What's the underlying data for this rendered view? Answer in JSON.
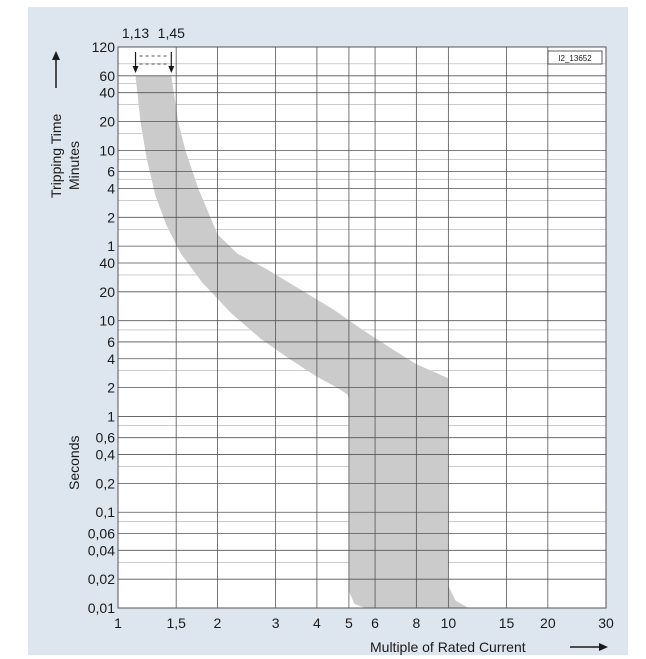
{
  "chart_data": {
    "type": "area",
    "title": "",
    "image_id": "I2_13652",
    "xlabel": "Multiple of Rated Current",
    "ylabel_top": "Tripping Time",
    "ylabel_minutes": "Minutes",
    "ylabel_seconds": "Seconds",
    "xscale": "log",
    "yscale": "log",
    "x_ticks": [
      {
        "value": 1,
        "label": "1"
      },
      {
        "value": 1.5,
        "label": "1,5"
      },
      {
        "value": 2,
        "label": "2"
      },
      {
        "value": 3,
        "label": "3"
      },
      {
        "value": 4,
        "label": "4"
      },
      {
        "value": 5,
        "label": "5"
      },
      {
        "value": 6,
        "label": "6"
      },
      {
        "value": 8,
        "label": "8"
      },
      {
        "value": 10,
        "label": "10"
      },
      {
        "value": 15,
        "label": "15"
      },
      {
        "value": 20,
        "label": "20"
      },
      {
        "value": 30,
        "label": "30"
      }
    ],
    "y_ticks": [
      {
        "seconds": 7200,
        "label": "120"
      },
      {
        "seconds": 3600,
        "label": "60"
      },
      {
        "seconds": 2400,
        "label": "40"
      },
      {
        "seconds": 1200,
        "label": "20"
      },
      {
        "seconds": 600,
        "label": "10"
      },
      {
        "seconds": 360,
        "label": "6"
      },
      {
        "seconds": 240,
        "label": "4"
      },
      {
        "seconds": 120,
        "label": "2"
      },
      {
        "seconds": 60,
        "label": "1"
      },
      {
        "seconds": 40,
        "label": "40"
      },
      {
        "seconds": 20,
        "label": "20"
      },
      {
        "seconds": 10,
        "label": "10"
      },
      {
        "seconds": 6,
        "label": "6"
      },
      {
        "seconds": 4,
        "label": "4"
      },
      {
        "seconds": 2,
        "label": "2"
      },
      {
        "seconds": 1,
        "label": "1"
      },
      {
        "seconds": 0.6,
        "label": "0,6"
      },
      {
        "seconds": 0.4,
        "label": "0,4"
      },
      {
        "seconds": 0.2,
        "label": "0,2"
      },
      {
        "seconds": 0.1,
        "label": "0,1"
      },
      {
        "seconds": 0.06,
        "label": "0,06"
      },
      {
        "seconds": 0.04,
        "label": "0,04"
      },
      {
        "seconds": 0.02,
        "label": "0,02"
      },
      {
        "seconds": 0.01,
        "label": "0,01"
      }
    ],
    "xlim": [
      1,
      30
    ],
    "ylim_seconds": [
      0.01,
      7200
    ],
    "annotations": [
      {
        "label": "1,13",
        "x": 1.13
      },
      {
        "label": "1,45",
        "x": 1.45
      }
    ],
    "band_color": "#cbcbcb",
    "grid": true,
    "band": {
      "lower": [
        {
          "x": 1.13,
          "t": 3600
        },
        {
          "x": 1.17,
          "t": 1200
        },
        {
          "x": 1.22,
          "t": 500
        },
        {
          "x": 1.3,
          "t": 200
        },
        {
          "x": 1.4,
          "t": 100
        },
        {
          "x": 1.55,
          "t": 50
        },
        {
          "x": 1.8,
          "t": 25
        },
        {
          "x": 2.2,
          "t": 12
        },
        {
          "x": 2.7,
          "t": 6.5
        },
        {
          "x": 3.3,
          "t": 4
        },
        {
          "x": 4,
          "t": 2.6
        },
        {
          "x": 4.6,
          "t": 2
        },
        {
          "x": 4.95,
          "t": 1.7
        },
        {
          "x": 5,
          "t": 1.5
        },
        {
          "x": 5,
          "t": 0.015
        },
        {
          "x": 5.2,
          "t": 0.011
        },
        {
          "x": 5.6,
          "t": 0.01
        }
      ],
      "upper": [
        {
          "x": 1.45,
          "t": 3600
        },
        {
          "x": 1.52,
          "t": 1200
        },
        {
          "x": 1.6,
          "t": 600
        },
        {
          "x": 1.75,
          "t": 240
        },
        {
          "x": 2,
          "t": 80
        },
        {
          "x": 2.3,
          "t": 50
        },
        {
          "x": 2.8,
          "t": 35
        },
        {
          "x": 3.5,
          "t": 22
        },
        {
          "x": 4.5,
          "t": 13
        },
        {
          "x": 5.5,
          "t": 8
        },
        {
          "x": 6.5,
          "t": 5.5
        },
        {
          "x": 8,
          "t": 3.5
        },
        {
          "x": 10,
          "t": 2.5
        },
        {
          "x": 10,
          "t": 0.017
        },
        {
          "x": 10.5,
          "t": 0.012
        },
        {
          "x": 11.5,
          "t": 0.01
        }
      ]
    }
  }
}
